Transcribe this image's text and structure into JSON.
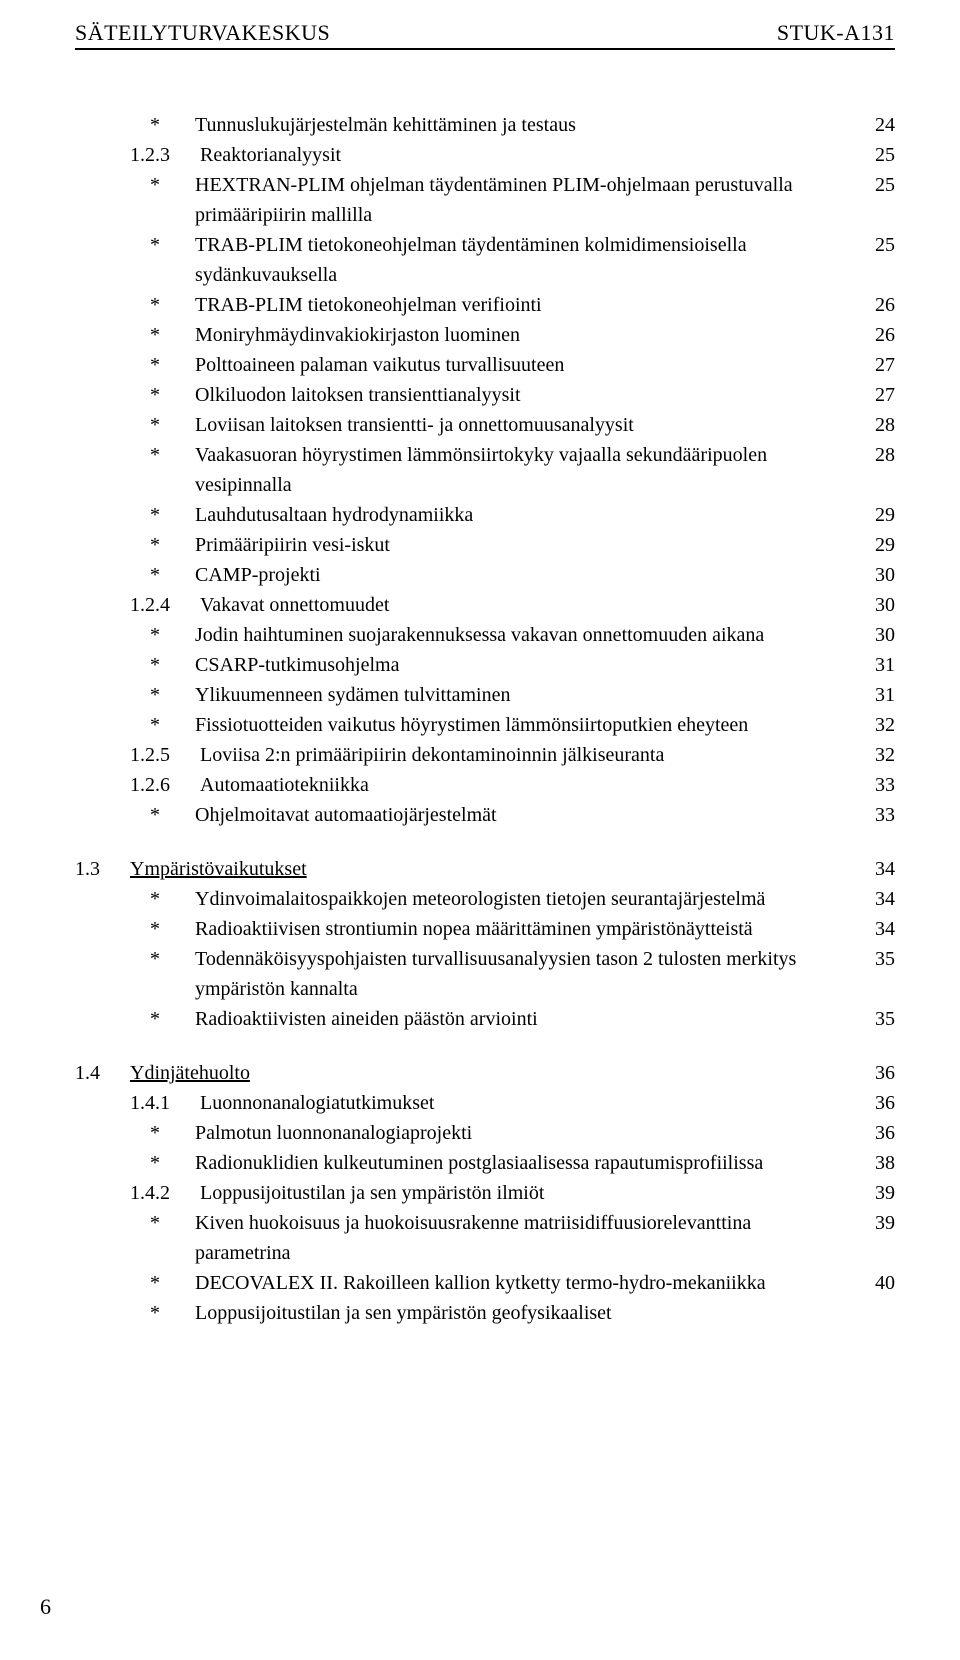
{
  "header": {
    "left": "SÄTEILYTURVAKESKUS",
    "right": "STUK-A131"
  },
  "rows": [
    {
      "sec": "",
      "sub": "",
      "bullet": "*",
      "text": "Tunnuslukujärjestelmän kehittäminen ja testaus",
      "page": "24"
    },
    {
      "sec": "",
      "sub": "1.2.3",
      "bullet": "",
      "text": "Reaktorianalyysit",
      "page": "25"
    },
    {
      "sec": "",
      "sub": "",
      "bullet": "*",
      "text": "HEXTRAN-PLIM ohjelman täydentäminen PLIM-ohjelmaan perustuvalla primääripiirin mallilla",
      "page": "25"
    },
    {
      "sec": "",
      "sub": "",
      "bullet": "*",
      "text": "TRAB-PLIM tietokoneohjelman täydentäminen kolmidimensioisella sydänkuvauksella",
      "page": "25"
    },
    {
      "sec": "",
      "sub": "",
      "bullet": "*",
      "text": "TRAB-PLIM tietokoneohjelman verifiointi",
      "page": "26"
    },
    {
      "sec": "",
      "sub": "",
      "bullet": "*",
      "text": "Moniryhmäydinvakiokirjaston luominen",
      "page": "26"
    },
    {
      "sec": "",
      "sub": "",
      "bullet": "*",
      "text": "Polttoaineen palaman vaikutus turvallisuuteen",
      "page": "27"
    },
    {
      "sec": "",
      "sub": "",
      "bullet": "*",
      "text": "Olkiluodon laitoksen transienttianalyysit",
      "page": "27"
    },
    {
      "sec": "",
      "sub": "",
      "bullet": "*",
      "text": "Loviisan laitoksen transientti- ja onnettomuusanalyysit",
      "page": "28"
    },
    {
      "sec": "",
      "sub": "",
      "bullet": "*",
      "text": "Vaakasuoran höyrystimen lämmönsiirtokyky vajaalla sekundääripuolen vesipinnalla",
      "page": "28"
    },
    {
      "sec": "",
      "sub": "",
      "bullet": "*",
      "text": "Lauhdutusaltaan hydrodynamiikka",
      "page": "29"
    },
    {
      "sec": "",
      "sub": "",
      "bullet": "*",
      "text": "Primääripiirin vesi-iskut",
      "page": "29"
    },
    {
      "sec": "",
      "sub": "",
      "bullet": "*",
      "text": "CAMP-projekti",
      "page": "30"
    },
    {
      "sec": "",
      "sub": "1.2.4",
      "bullet": "",
      "text": "Vakavat onnettomuudet",
      "page": "30"
    },
    {
      "sec": "",
      "sub": "",
      "bullet": "*",
      "text": "Jodin haihtuminen suojarakennuksessa vakavan onnettomuuden aikana",
      "page": "30"
    },
    {
      "sec": "",
      "sub": "",
      "bullet": "*",
      "text": "CSARP-tutkimusohjelma",
      "page": "31"
    },
    {
      "sec": "",
      "sub": "",
      "bullet": "*",
      "text": "Ylikuumenneen sydämen tulvittaminen",
      "page": "31"
    },
    {
      "sec": "",
      "sub": "",
      "bullet": "*",
      "text": "Fissiotuotteiden vaikutus höyrystimen lämmönsiirtoputkien eheyteen",
      "page": "32"
    },
    {
      "sec": "",
      "sub": "1.2.5",
      "bullet": "",
      "text": "Loviisa 2:n primääripiirin dekontaminoinnin jälkiseuranta",
      "page": "32"
    },
    {
      "sec": "",
      "sub": "1.2.6",
      "bullet": "",
      "text": "Automaatiotekniikka",
      "page": "33"
    },
    {
      "sec": "",
      "sub": "",
      "bullet": "*",
      "text": "Ohjelmoitavat automaatiojärjestelmät",
      "page": "33"
    },
    {
      "spacer": true
    },
    {
      "sec": "1.3",
      "sub": "",
      "bullet": "",
      "section_title": true,
      "text": "Ympäristövaikutukset",
      "page": "34"
    },
    {
      "sec": "",
      "sub": "",
      "bullet": "*",
      "text": "Ydinvoimalaitospaikkojen meteorologisten tietojen seurantajärjestelmä",
      "page": "34"
    },
    {
      "sec": "",
      "sub": "",
      "bullet": "*",
      "text": "Radioaktiivisen strontiumin nopea määrittäminen ympäristönäytteistä",
      "page": "34"
    },
    {
      "sec": "",
      "sub": "",
      "bullet": "*",
      "text": "Todennäköisyyspohjaisten turvallisuusanalyysien tason 2 tulosten merkitys ympäristön kannalta",
      "page": "35"
    },
    {
      "sec": "",
      "sub": "",
      "bullet": "*",
      "text": "Radioaktiivisten aineiden päästön arviointi",
      "page": "35"
    },
    {
      "spacer": true
    },
    {
      "sec": "1.4",
      "sub": "",
      "bullet": "",
      "section_title": true,
      "text": "Ydinjätehuolto",
      "page": "36"
    },
    {
      "sec": "",
      "sub": "1.4.1",
      "bullet": "",
      "text": "Luonnonanalogiatutkimukset",
      "page": "36"
    },
    {
      "sec": "",
      "sub": "",
      "bullet": "*",
      "text": "Palmotun luonnonanalogiaprojekti",
      "page": "36"
    },
    {
      "sec": "",
      "sub": "",
      "bullet": "*",
      "text": "Radionuklidien kulkeutuminen postglasiaalisessa rapautumisprofiilissa",
      "page": "38"
    },
    {
      "sec": "",
      "sub": "1.4.2",
      "bullet": "",
      "text": "Loppusijoitustilan ja sen ympäristön ilmiöt",
      "page": "39"
    },
    {
      "sec": "",
      "sub": "",
      "bullet": "*",
      "text": "Kiven huokoisuus ja huokoisuusrakenne matriisidiffuusiorelevanttina parametrina",
      "page": "39"
    },
    {
      "sec": "",
      "sub": "",
      "bullet": "*",
      "text": "DECOVALEX II. Rakoilleen kallion kytketty termo-hydro-mekaniikka",
      "page": "40"
    },
    {
      "sec": "",
      "sub": "",
      "bullet": "*",
      "text": "Loppusijoitustilan ja sen ympäristön geofysikaaliset",
      "page": ""
    }
  ],
  "page_number": "6"
}
